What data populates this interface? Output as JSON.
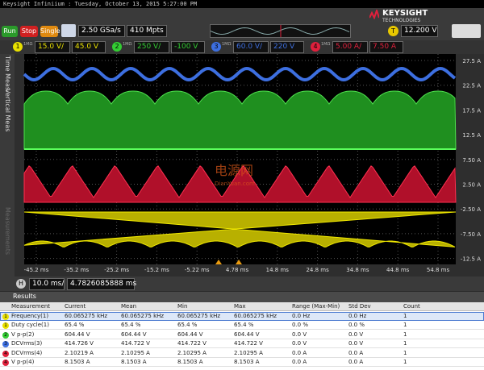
{
  "title_bar": "Keysight Infiniium : Tuesday, October 13, 2015 5:27:00 PM",
  "logo": {
    "brand": "KEYSIGHT",
    "sub": "TECHNOLOGIES"
  },
  "toolbar": {
    "run": "Run",
    "stop": "Stop",
    "single": "Single",
    "sample_rate": "2.50 GSa/s",
    "memory": "410 Mpts",
    "trigger_label": "T",
    "trigger_level": "12.200 V"
  },
  "channels": [
    {
      "number": "1",
      "impedance": "1MΩ",
      "scale": "15.0 V/",
      "offset": "45.0 V",
      "color": "#e8e000"
    },
    {
      "number": "2",
      "impedance": "1MΩ",
      "scale": "250 V/",
      "offset": "-100 V",
      "color": "#33cc33"
    },
    {
      "number": "3",
      "impedance": "1MΩ",
      "scale": "60.0 V/",
      "offset": "220 V",
      "color": "#3d6fe0"
    },
    {
      "number": "4",
      "impedance": "1MΩ",
      "scale": "5.00 A/",
      "offset": "7.50 A",
      "color": "#e0203c"
    }
  ],
  "side_tabs": [
    "Time Meas",
    "Vertical Meas",
    "Measurements"
  ],
  "y_labels": [
    "27.5 A",
    "22.5 A",
    "17.5 A",
    "12.5 A",
    "7.50 A",
    "2.50 A",
    "-2.50 A",
    "-7.50 A",
    "-12.5 A"
  ],
  "x_labels": [
    "-45.2 ms",
    "-35.2 ms",
    "-25.2 ms",
    "-15.2 ms",
    "-5.22 ms",
    "4.78 ms",
    "14.8 ms",
    "24.8 ms",
    "34.8 ms",
    "44.8 ms",
    "54.8 ms"
  ],
  "horizontal": {
    "label": "H",
    "scale": "10.0 ms/",
    "position": "4.7826085888 ms"
  },
  "watermark": {
    "cn": "电源网",
    "en": "DianYuan.com"
  },
  "results": {
    "title": "Results",
    "columns": [
      "Measurement",
      "Current",
      "Mean",
      "Min",
      "Max",
      "Range (Max-Min)",
      "Std Dev",
      "Count"
    ],
    "rows": [
      {
        "marker": "1",
        "color": "#e8e000",
        "cells": [
          "Frequency(1)",
          "60.065275 kHz",
          "60.065275 kHz",
          "60.065275 kHz",
          "60.065275 kHz",
          "0.0 Hz",
          "0.0 Hz",
          "1"
        ]
      },
      {
        "marker": "1",
        "color": "#e8e000",
        "cells": [
          "Duty cycle(1)",
          "65.4 %",
          "65.4 %",
          "65.4 %",
          "65.4 %",
          "0.0 %",
          "0.0 %",
          "1"
        ]
      },
      {
        "marker": "2",
        "color": "#33cc33",
        "cells": [
          "V p-p(2)",
          "604.44 V",
          "604.44 V",
          "604.44 V",
          "604.44 V",
          "0.0 V",
          "0.0 V",
          "1"
        ]
      },
      {
        "marker": "3",
        "color": "#3d6fe0",
        "cells": [
          "DCVrms(3)",
          "414.726 V",
          "414.722 V",
          "414.722 V",
          "414.722 V",
          "0.0 V",
          "0.0 V",
          "1"
        ]
      },
      {
        "marker": "4",
        "color": "#e0203c",
        "cells": [
          "DCVrms(4)",
          "2.10219 A",
          "2.10295 A",
          "2.10295 A",
          "2.10295 A",
          "0.0 A",
          "0.0 A",
          "1"
        ]
      },
      {
        "marker": "4",
        "color": "#e0203c",
        "cells": [
          "V p-p(4)",
          "8.1503 A",
          "8.1503 A",
          "8.1503 A",
          "8.1503 A",
          "0.0 A",
          "0.0 A",
          "1"
        ]
      }
    ]
  }
}
